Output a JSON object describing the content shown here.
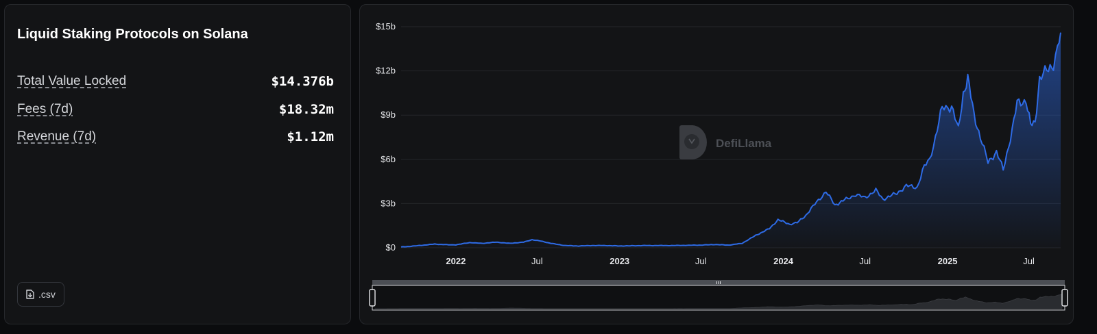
{
  "stats": {
    "title": "Liquid Staking Protocols on Solana",
    "metrics": [
      {
        "label": "Total Value Locked",
        "value": "$14.376b"
      },
      {
        "label": "Fees (7d)",
        "value": "$18.32m"
      },
      {
        "label": "Revenue (7d)",
        "value": "$1.12m"
      }
    ],
    "csv_label": ".csv"
  },
  "watermark": "DefiLlama",
  "colors": {
    "line": "#2e6be6",
    "background": "#131416",
    "grid": "#24262a"
  },
  "chart_data": {
    "type": "area",
    "title": "",
    "xlabel": "",
    "ylabel": "",
    "x_range": [
      "2021-09-01",
      "2025-09-10"
    ],
    "ylim": [
      0,
      15
    ],
    "y_unit": "billion USD",
    "y_ticks": [
      0,
      3,
      6,
      9,
      12,
      15
    ],
    "y_tick_labels": [
      "$0",
      "$3b",
      "$6b",
      "$9b",
      "$12b",
      "$15b"
    ],
    "x_ticks": [
      {
        "date": "2022-01-01",
        "label": "2022",
        "bold": true
      },
      {
        "date": "2022-07-01",
        "label": "Jul",
        "bold": false
      },
      {
        "date": "2023-01-01",
        "label": "2023",
        "bold": true
      },
      {
        "date": "2023-07-01",
        "label": "Jul",
        "bold": false
      },
      {
        "date": "2024-01-01",
        "label": "2024",
        "bold": true
      },
      {
        "date": "2024-07-01",
        "label": "Jul",
        "bold": false
      },
      {
        "date": "2025-01-01",
        "label": "2025",
        "bold": true
      },
      {
        "date": "2025-07-01",
        "label": "Jul",
        "bold": false
      }
    ],
    "grid": true,
    "series": [
      {
        "values": [
          [
            "2021-09-01",
            0.05
          ],
          [
            "2021-10-01",
            0.12
          ],
          [
            "2021-11-15",
            0.25
          ],
          [
            "2021-12-15",
            0.2
          ],
          [
            "2022-01-01",
            0.2
          ],
          [
            "2022-02-01",
            0.35
          ],
          [
            "2022-03-01",
            0.3
          ],
          [
            "2022-04-01",
            0.38
          ],
          [
            "2022-05-01",
            0.3
          ],
          [
            "2022-06-01",
            0.38
          ],
          [
            "2022-06-20",
            0.55
          ],
          [
            "2022-07-10",
            0.45
          ],
          [
            "2022-08-01",
            0.3
          ],
          [
            "2022-09-01",
            0.15
          ],
          [
            "2022-10-01",
            0.12
          ],
          [
            "2022-11-01",
            0.15
          ],
          [
            "2022-12-01",
            0.15
          ],
          [
            "2023-01-01",
            0.12
          ],
          [
            "2023-03-01",
            0.15
          ],
          [
            "2023-05-01",
            0.15
          ],
          [
            "2023-07-01",
            0.18
          ],
          [
            "2023-08-01",
            0.22
          ],
          [
            "2023-09-01",
            0.18
          ],
          [
            "2023-10-01",
            0.3
          ],
          [
            "2023-11-01",
            0.85
          ],
          [
            "2023-12-01",
            1.3
          ],
          [
            "2023-12-20",
            1.9
          ],
          [
            "2024-01-15",
            1.6
          ],
          [
            "2024-02-01",
            1.7
          ],
          [
            "2024-02-20",
            2.2
          ],
          [
            "2024-03-15",
            3.1
          ],
          [
            "2024-04-05",
            3.8
          ],
          [
            "2024-04-25",
            2.9
          ],
          [
            "2024-05-20",
            3.3
          ],
          [
            "2024-06-10",
            3.6
          ],
          [
            "2024-07-01",
            3.4
          ],
          [
            "2024-07-25",
            3.9
          ],
          [
            "2024-08-10",
            3.3
          ],
          [
            "2024-09-10",
            3.7
          ],
          [
            "2024-10-01",
            4.2
          ],
          [
            "2024-10-25",
            4.1
          ],
          [
            "2024-11-10",
            5.5
          ],
          [
            "2024-11-22",
            6.0
          ],
          [
            "2024-12-05",
            7.5
          ],
          [
            "2024-12-20",
            9.5
          ],
          [
            "2025-01-10",
            9.6
          ],
          [
            "2025-01-25",
            8.0
          ],
          [
            "2025-02-05",
            10.5
          ],
          [
            "2025-02-15",
            11.5
          ],
          [
            "2025-03-01",
            9.0
          ],
          [
            "2025-03-15",
            7.5
          ],
          [
            "2025-04-01",
            5.8
          ],
          [
            "2025-04-20",
            6.5
          ],
          [
            "2025-05-05",
            5.3
          ],
          [
            "2025-05-25",
            8.0
          ],
          [
            "2025-06-05",
            9.8
          ],
          [
            "2025-06-25",
            10.0
          ],
          [
            "2025-07-05",
            8.3
          ],
          [
            "2025-07-15",
            8.5
          ],
          [
            "2025-07-25",
            11.5
          ],
          [
            "2025-08-10",
            12.0
          ],
          [
            "2025-08-25",
            12.5
          ],
          [
            "2025-09-03",
            13.5
          ],
          [
            "2025-09-10",
            14.6
          ]
        ]
      }
    ]
  }
}
